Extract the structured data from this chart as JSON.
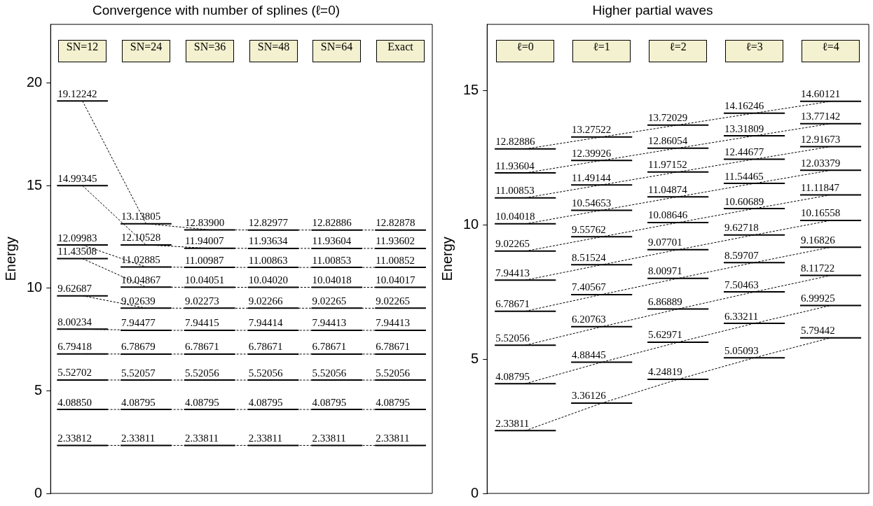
{
  "chart_data": [
    {
      "type": "line",
      "title": "Convergence with number of splines (ℓ=0)",
      "ylabel": "Energy",
      "categories": [
        "SN=12",
        "SN=24",
        "SN=36",
        "SN=48",
        "SN=64",
        "Exact"
      ],
      "ylim": [
        0,
        22.85
      ],
      "yticks": [
        0,
        5,
        10,
        15,
        20
      ],
      "line_style": "dashed",
      "series": [
        {
          "color": "#000000",
          "values": [
            2.33812,
            2.33811,
            2.33811,
            2.33811,
            2.33811,
            2.33811
          ],
          "value_labels": [
            "2.33812",
            "2.33811",
            "2.33811",
            "2.33811",
            "2.33811",
            "2.33811"
          ]
        },
        {
          "color": "#000000",
          "values": [
            4.0885,
            4.08795,
            4.08795,
            4.08795,
            4.08795,
            4.08795
          ],
          "value_labels": [
            "4.08850",
            "4.08795",
            "4.08795",
            "4.08795",
            "4.08795",
            "4.08795"
          ]
        },
        {
          "color": "#000000",
          "values": [
            5.52702,
            5.52057,
            5.52056,
            5.52056,
            5.52056,
            5.52056
          ],
          "value_labels": [
            "5.52702",
            "5.52057",
            "5.52056",
            "5.52056",
            "5.52056",
            "5.52056"
          ]
        },
        {
          "color": "#000000",
          "values": [
            6.79418,
            6.78679,
            6.78671,
            6.78671,
            6.78671,
            6.78671
          ],
          "value_labels": [
            "6.79418",
            "6.78679",
            "6.78671",
            "6.78671",
            "6.78671",
            "6.78671"
          ]
        },
        {
          "color": "#000000",
          "values": [
            8.00234,
            7.94477,
            7.94415,
            7.94414,
            7.94413,
            7.94413
          ],
          "value_labels": [
            "8.00234",
            "7.94477",
            "7.94415",
            "7.94414",
            "7.94413",
            "7.94413"
          ]
        },
        {
          "color": "#000000",
          "values": [
            9.62687,
            9.02639,
            9.02273,
            9.02266,
            9.02265,
            9.02265
          ],
          "value_labels": [
            "9.62687",
            "9.02639",
            "9.02273",
            "9.02266",
            "9.02265",
            "9.02265"
          ]
        },
        {
          "color": "#000000",
          "values": [
            11.43508,
            10.04867,
            10.04051,
            10.0402,
            10.04018,
            10.04017
          ],
          "value_labels": [
            "11.43508",
            "10.04867",
            "10.04051",
            "10.04020",
            "10.04018",
            "10.04017"
          ]
        },
        {
          "color": "#000000",
          "values": [
            12.09983,
            11.02885,
            11.00987,
            11.00863,
            11.00853,
            11.00852
          ],
          "value_labels": [
            "12.09983",
            "11.02885",
            "11.00987",
            "11.00863",
            "11.00853",
            "11.00852"
          ]
        },
        {
          "color": "#000000",
          "values": [
            14.99345,
            12.10528,
            11.94007,
            11.93634,
            11.93604,
            11.93602
          ],
          "value_labels": [
            "14.99345",
            "12.10528",
            "11.94007",
            "11.93634",
            "11.93604",
            "11.93602"
          ]
        },
        {
          "color": "#000000",
          "values": [
            19.12242,
            13.13805,
            12.839,
            12.82977,
            12.82886,
            12.82878
          ],
          "value_labels": [
            "19.12242",
            "13.13805",
            "12.83900",
            "12.82977",
            "12.82886",
            "12.82878"
          ]
        }
      ]
    },
    {
      "type": "line",
      "title": "Higher partial waves",
      "ylabel": "Energy",
      "categories": [
        "ℓ=0",
        "ℓ=1",
        "ℓ=2",
        "ℓ=3",
        "ℓ=4"
      ],
      "ylim": [
        0,
        17.47
      ],
      "yticks": [
        0,
        5,
        10,
        15
      ],
      "line_style": "dashed",
      "series": [
        {
          "color": "#000000",
          "values": [
            2.33811,
            3.36126,
            4.24819,
            5.05093,
            5.79442
          ],
          "value_labels": [
            "2.33811",
            "3.36126",
            "4.24819",
            "5.05093",
            "5.79442"
          ]
        },
        {
          "color": "#000000",
          "values": [
            4.08795,
            4.88445,
            5.62971,
            6.33211,
            6.99925
          ],
          "value_labels": [
            "4.08795",
            "4.88445",
            "5.62971",
            "6.33211",
            "6.99925"
          ]
        },
        {
          "color": "#000000",
          "values": [
            5.52056,
            6.20763,
            6.86889,
            7.50463,
            8.11722
          ],
          "value_labels": [
            "5.52056",
            "6.20763",
            "6.86889",
            "7.50463",
            "8.11722"
          ]
        },
        {
          "color": "#000000",
          "values": [
            6.78671,
            7.40567,
            8.00971,
            8.59707,
            9.16826
          ],
          "value_labels": [
            "6.78671",
            "7.40567",
            "8.00971",
            "8.59707",
            "9.16826"
          ]
        },
        {
          "color": "#000000",
          "values": [
            7.94413,
            8.51524,
            9.07701,
            9.62718,
            10.16558
          ],
          "value_labels": [
            "7.94413",
            "8.51524",
            "9.07701",
            "9.62718",
            "10.16558"
          ]
        },
        {
          "color": "#000000",
          "values": [
            9.02265,
            9.55762,
            10.08646,
            10.60689,
            11.11847
          ],
          "value_labels": [
            "9.02265",
            "9.55762",
            "10.08646",
            "10.60689",
            "11.11847"
          ]
        },
        {
          "color": "#000000",
          "values": [
            10.04018,
            10.54653,
            11.04874,
            11.54465,
            12.03379
          ],
          "value_labels": [
            "10.04018",
            "10.54653",
            "11.04874",
            "11.54465",
            "12.03379"
          ]
        },
        {
          "color": "#000000",
          "values": [
            11.00853,
            11.49144,
            11.97152,
            12.44677,
            12.91673
          ],
          "value_labels": [
            "11.00853",
            "11.49144",
            "11.97152",
            "12.44677",
            "12.91673"
          ]
        },
        {
          "color": "#000000",
          "values": [
            11.93604,
            12.39926,
            12.86054,
            13.31809,
            13.77142
          ],
          "value_labels": [
            "11.93604",
            "12.39926",
            "12.86054",
            "13.31809",
            "13.77142"
          ]
        },
        {
          "color": "#000000",
          "values": [
            12.82886,
            13.27522,
            13.72029,
            14.16246,
            14.60121
          ],
          "value_labels": [
            "12.82886",
            "13.27522",
            "13.72029",
            "14.16246",
            "14.60121"
          ]
        }
      ]
    }
  ]
}
